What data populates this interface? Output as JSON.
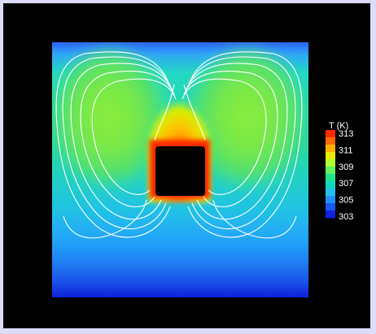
{
  "colorbar": {
    "title": "T (K)",
    "ticks": [
      "313",
      "311",
      "309",
      "307",
      "305",
      "303"
    ],
    "colors": [
      "#ff2a00",
      "#ff6a00",
      "#ffb000",
      "#e8e800",
      "#b0ff30",
      "#62f060",
      "#20e28c",
      "#10d8c0",
      "#20c0f0",
      "#2090ff",
      "#1858f0",
      "#1020e0"
    ]
  },
  "colors": {
    "background": "#dcdcf8",
    "frame": "#000000",
    "streamline": "#ffffff",
    "obstacle": "#000000"
  }
}
